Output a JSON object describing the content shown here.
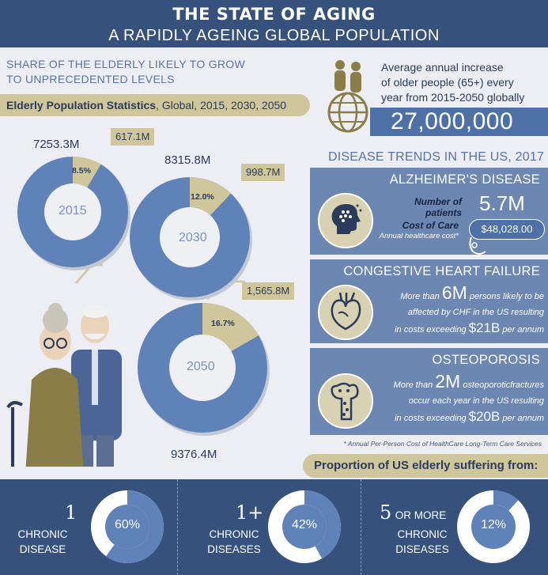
{
  "header": {
    "title": "THE STATE OF AGING",
    "subtitle": "A RAPIDLY AGEING GLOBAL POPULATION"
  },
  "share": {
    "heading_line1": "SHARE OF THE ELDERLY LIKELY TO GROW",
    "heading_line2": "TO UNPRECEDENTED LEVELS",
    "stat_bold": "Elderly Population Statistics",
    "stat_rest": ", Global, 2015, 2030, 2050"
  },
  "chart_data": {
    "type": "pie",
    "charts": [
      {
        "year": "2015",
        "total": "7253.3M",
        "elderly": "617.1M",
        "share_label": "8.5%",
        "share": 8.5
      },
      {
        "year": "2030",
        "total": "8315.8M",
        "elderly": "998.7M",
        "share_label": "12.0%",
        "share": 12.0
      },
      {
        "year": "2050",
        "total": "9376.4M",
        "elderly": "1,565.8M",
        "share_label": "16.7%",
        "share": 16.7
      }
    ]
  },
  "annual": {
    "line1": "Average annual increase",
    "line2": "of older people (65+) every",
    "line3": "year from 2015-2050 globally",
    "count": "27,000,000"
  },
  "disease": {
    "heading": "DISEASE TRENDS IN THE US, 2017",
    "alz": {
      "title": "ALZHEIMER'S DISEASE",
      "patients_label1": "Number of",
      "patients_label2": "patients",
      "patients_value": "5.7M",
      "cost_label": "Cost of Care",
      "cost_sub": "Annual healthcare cost*",
      "cost_value": "$48,028.00"
    },
    "chf": {
      "title": "CONGESTIVE HEART FAILURE",
      "pre": "More than",
      "big": "6M",
      "post": "persons likely to be",
      "line2": "affected by CHF in the US resulting",
      "line3_pre": "in costs exceeding",
      "cost": "$21B",
      "line3_post": "per annum"
    },
    "osteo": {
      "title": "OSTEOPOROSIS",
      "pre": "More than",
      "big": "2M",
      "post": "osteoporoticfractures",
      "line2": "occur each year in the US resulting",
      "line3_pre": "in costs exceeding",
      "cost": "$20B",
      "line3_post": "per annum"
    },
    "note": "* Annual Per-Person Cost of HealthCare Long-Term Care Services"
  },
  "proportion": {
    "heading": "Proportion of US elderly suffering from:",
    "items": [
      {
        "num": "1",
        "line1": "CHRONIC",
        "line2": "DISEASE",
        "line3": "",
        "pct_label": "60%",
        "pct": 60
      },
      {
        "num": "1+",
        "line1": "CHRONIC",
        "line2": "DISEASES",
        "line3": "",
        "pct_label": "42%",
        "pct": 42
      },
      {
        "num": "5",
        "num_suffix": "OR MORE",
        "line1": "CHRONIC",
        "line2": "DISEASES",
        "line3": "",
        "pct_label": "12%",
        "pct": 12
      }
    ]
  },
  "colors": {
    "navy": "#35517c",
    "blue": "#4d71a7",
    "panel": "#6d87b3",
    "khaki": "#cfc69b",
    "light_donut": "#5f82b9"
  }
}
